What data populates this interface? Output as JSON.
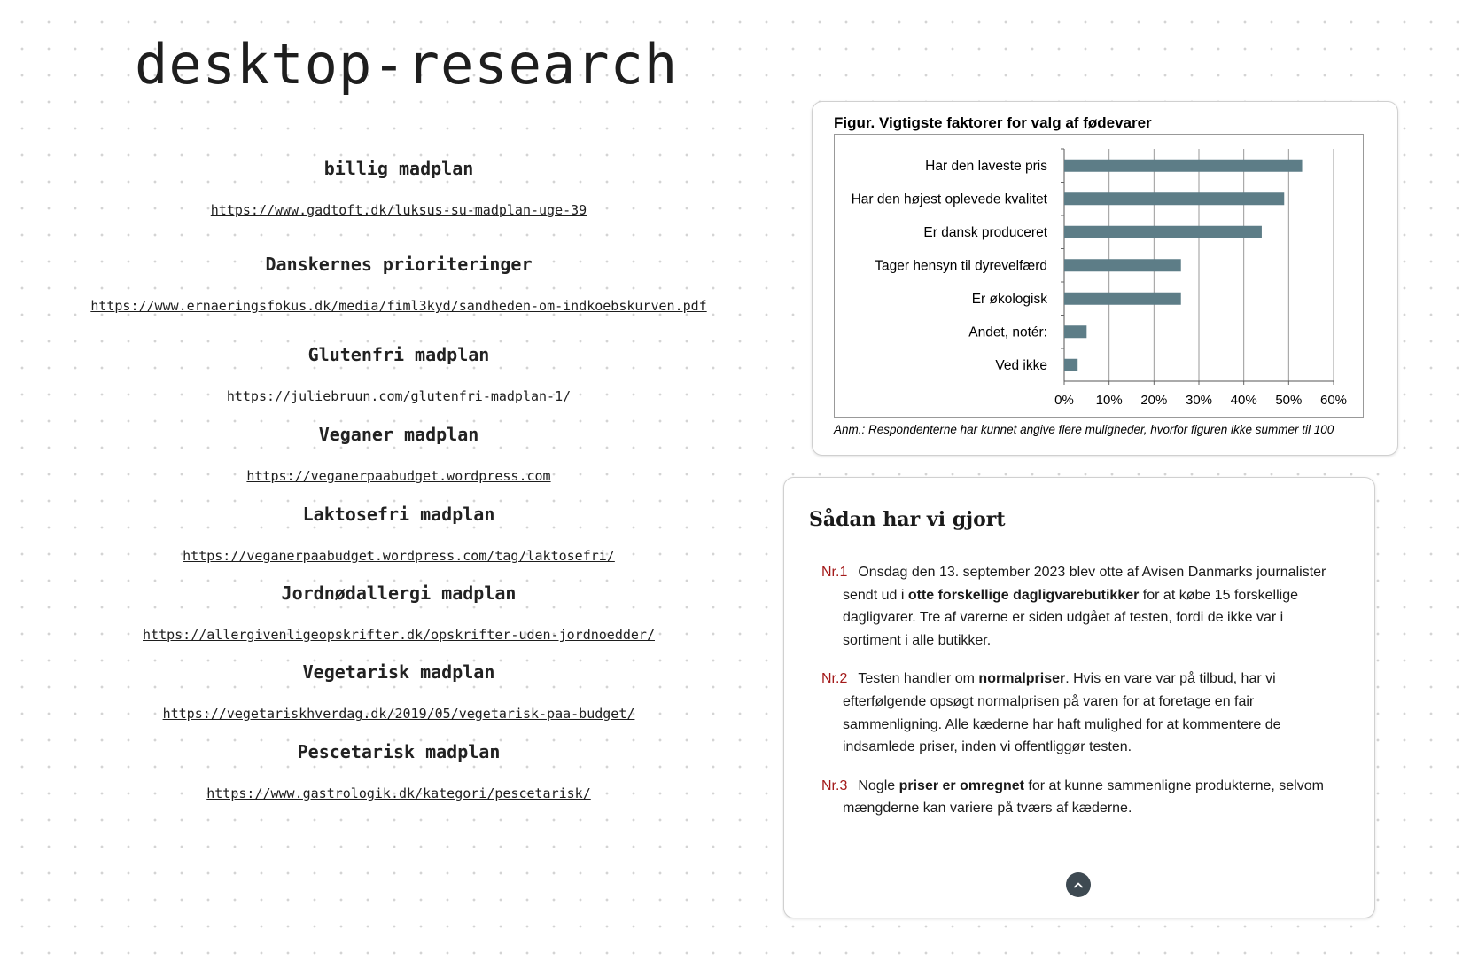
{
  "page": {
    "title": "desktop-research"
  },
  "links": [
    {
      "heading": "billig madplan",
      "url": "https://www.gadtoft.dk/luksus-su-madplan-uge-39"
    },
    {
      "heading": "Danskernes prioriteringer",
      "url": "https://www.ernaeringsfokus.dk/media/fiml3kyd/sandheden-om-indkoebskurven.pdf"
    },
    {
      "heading": "Glutenfri  madplan",
      "url": "https://juliebruun.com/glutenfri-madplan-1/"
    },
    {
      "heading": "Veganer madplan",
      "url": "https://veganerpaabudget.wordpress.com"
    },
    {
      "heading": "Laktosefri madplan",
      "url": "https://veganerpaabudget.wordpress.com/tag/laktosefri/"
    },
    {
      "heading": "Jordnødallergi madplan",
      "url": "https://allergivenligeopskrifter.dk/opskrifter-uden-jordnoedder/"
    },
    {
      "heading": "Vegetarisk madplan",
      "url": "https://vegetariskhverdag.dk/2019/05/vegetarisk-paa-budget/"
    },
    {
      "heading": "Pescetarisk madplan",
      "url": "https://www.gastrologik.dk/kategori/pescetarisk/"
    }
  ],
  "figure": {
    "note": "Anm.: Respondenterne har kunnet angive flere muligheder, hvorfor figuren ikke summer til 100"
  },
  "chart_data": {
    "type": "bar",
    "orientation": "horizontal",
    "title": "Figur. Vigtigste faktorer for valg af fødevarer",
    "categories": [
      "Har den laveste pris",
      "Har den højest oplevede kvalitet",
      "Er dansk produceret",
      "Tager hensyn til dyrevelfærd",
      "Er økologisk",
      "Andet, notér:",
      "Ved ikke"
    ],
    "values": [
      53,
      49,
      44,
      26,
      26,
      5,
      3
    ],
    "xlim": [
      0,
      60
    ],
    "xticks": [
      "0%",
      "10%",
      "20%",
      "30%",
      "40%",
      "50%",
      "60%"
    ],
    "grid": true,
    "bar_color": "#5d7d87"
  },
  "method": {
    "title": "Sådan har vi gjort",
    "steps": [
      {
        "num": "Nr.1",
        "parts": [
          {
            "t": "Onsdag den 13. september 2023 blev otte af Avisen Danmarks journalister sendt ud i "
          },
          {
            "t": "otte forskellige dagligvarebutikker",
            "b": true
          },
          {
            "t": " for at købe 15 forskellige dagligvarer. Tre af varerne er siden udgået af testen, fordi de ikke var i sortiment i alle butikker."
          }
        ]
      },
      {
        "num": "Nr.2",
        "parts": [
          {
            "t": "Testen handler om "
          },
          {
            "t": "normalpriser",
            "b": true
          },
          {
            "t": ". Hvis en vare var på tilbud, har vi efterfølgende opsøgt normalprisen på varen for at foretage en fair sammenligning. Alle kæderne har haft mulighed for at kommentere de indsamlede priser, inden vi offentliggør testen."
          }
        ]
      },
      {
        "num": "Nr.3",
        "parts": [
          {
            "t": "Nogle "
          },
          {
            "t": "priser er omregnet",
            "b": true
          },
          {
            "t": " for at kunne sammenligne produkterne, selvom mængderne kan variere på tværs af kæderne."
          }
        ]
      }
    ],
    "scroll_icon": "chevron-up-icon"
  }
}
